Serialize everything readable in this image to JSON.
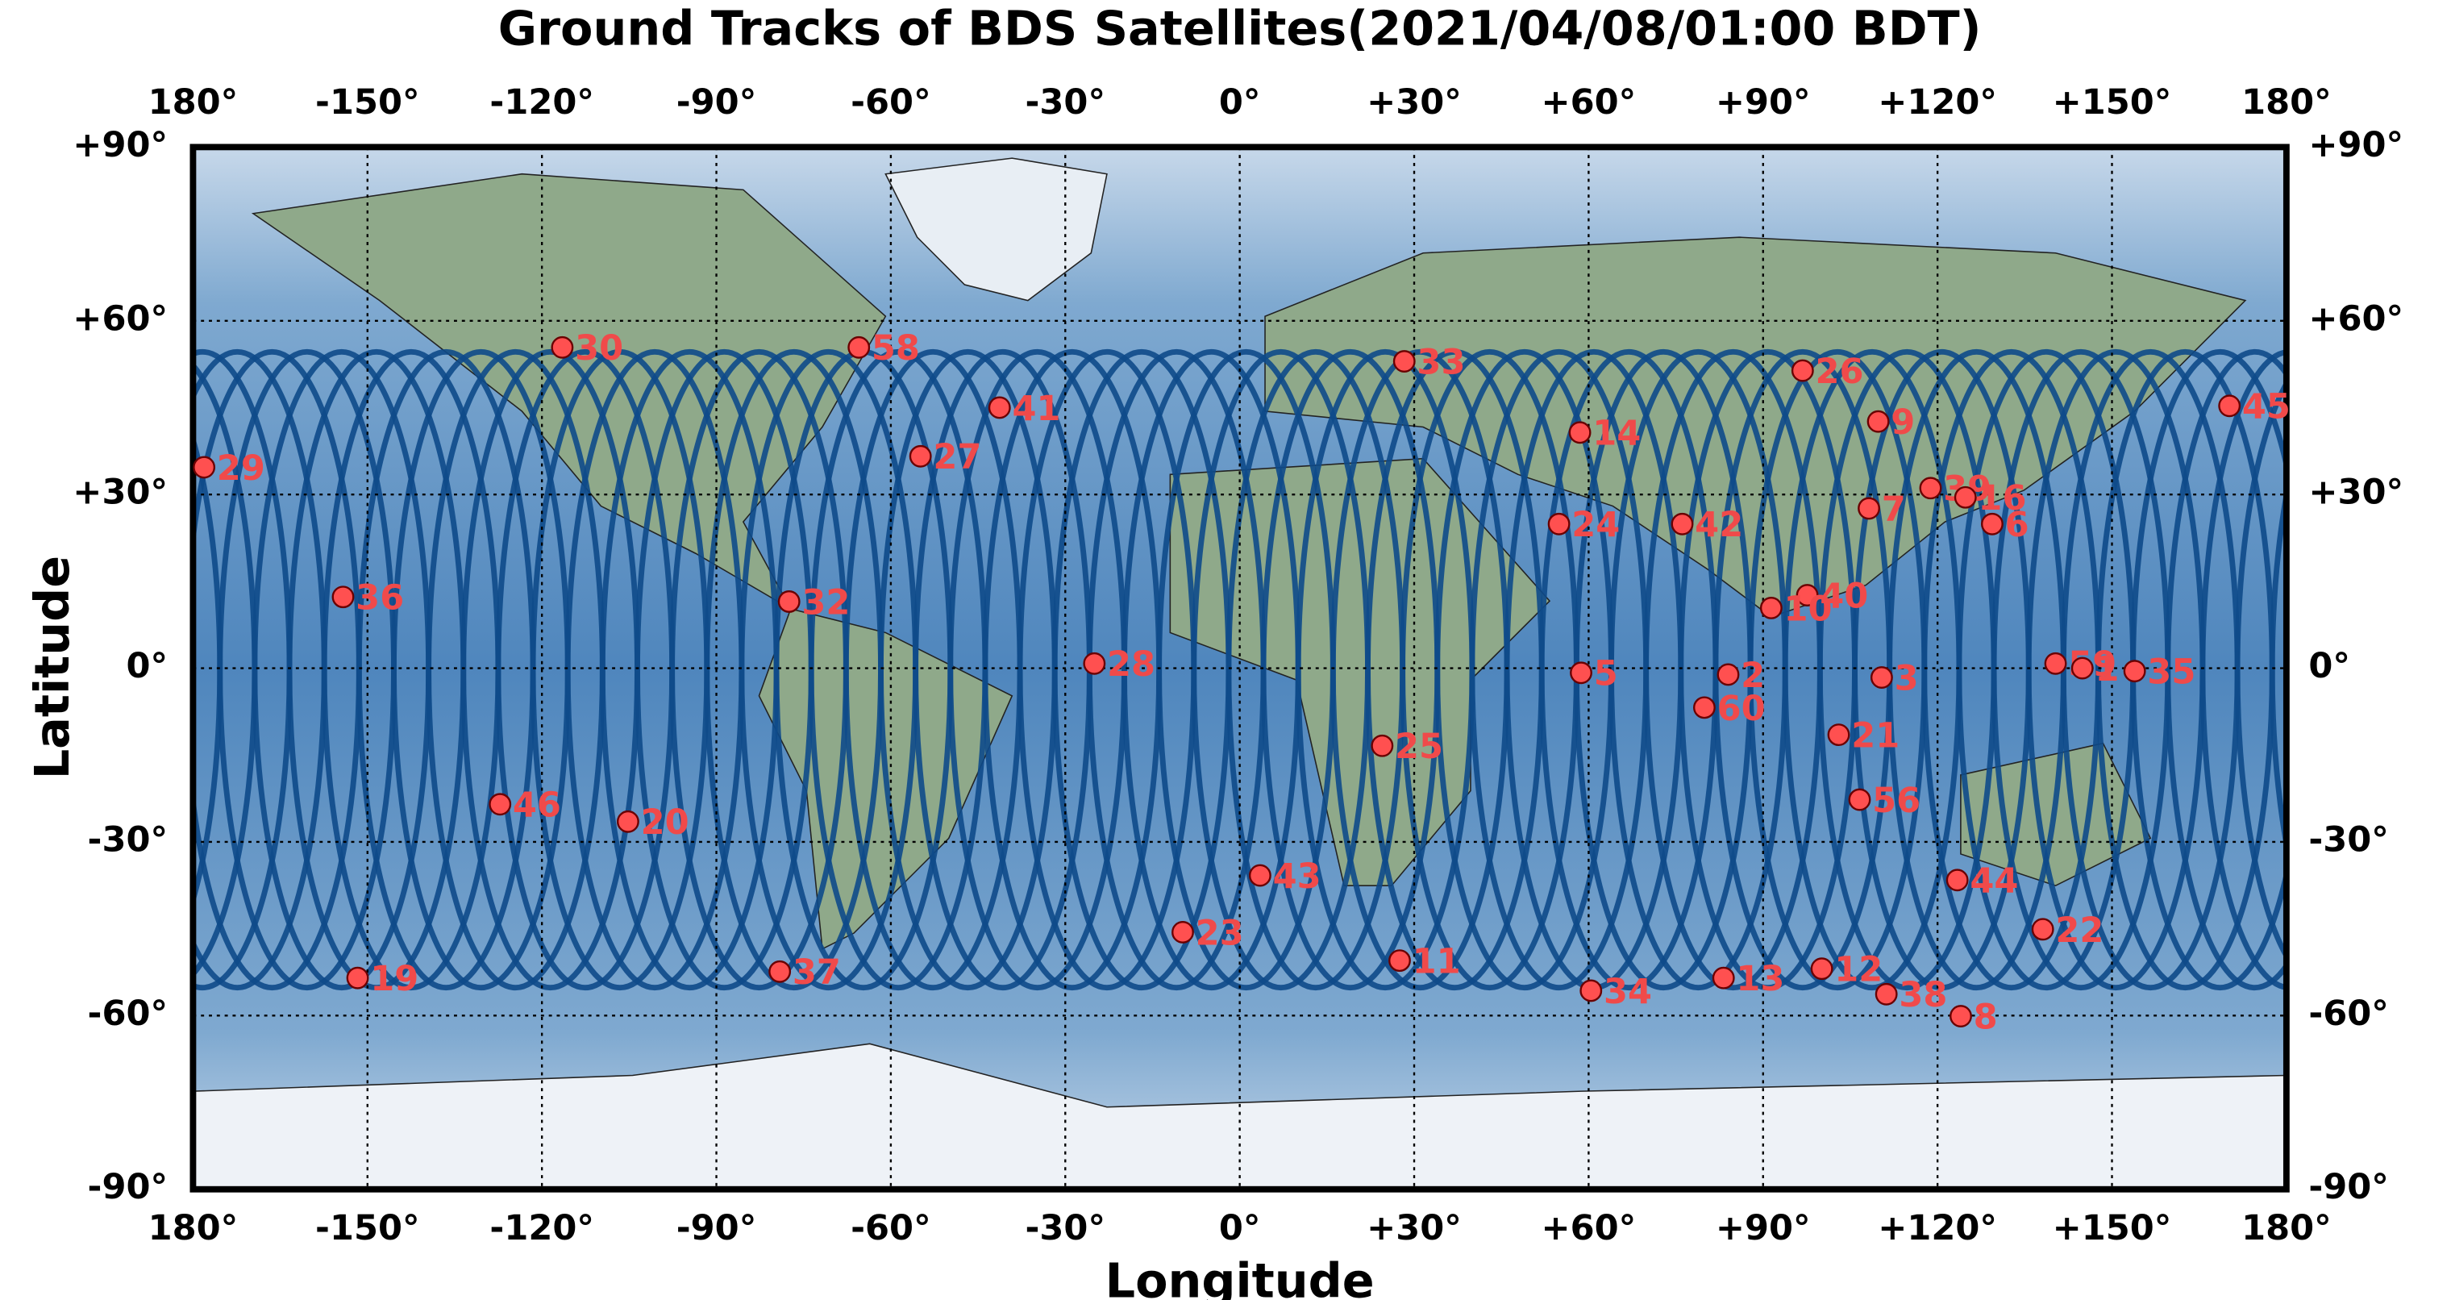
{
  "chart_data": {
    "type": "scatter",
    "title": "Ground Tracks of BDS Satellites(2021/04/08/01:00 BDT)",
    "xlabel": "Longitude",
    "ylabel": "Latitude",
    "labels": [
      "30",
      "58",
      "33",
      "41",
      "27",
      "29",
      "36",
      "32",
      "28",
      "46",
      "20",
      "19",
      "37",
      "23",
      "43",
      "25",
      "11",
      "34",
      "5",
      "14",
      "24",
      "42",
      "2",
      "60",
      "13",
      "26",
      "9",
      "7",
      "39",
      "16",
      "6",
      "40",
      "10",
      "3",
      "21",
      "56",
      "12",
      "38",
      "8",
      "44",
      "22",
      "59",
      "1",
      "35",
      "45"
    ],
    "x": [
      -116.5,
      -65.5,
      28.3,
      -41.3,
      -54.9,
      -178.1,
      -154.2,
      -77.5,
      -25,
      -127.2,
      -105.2,
      -151.7,
      -79.1,
      -9.8,
      3.5,
      24.5,
      27.5,
      60.4,
      58.7,
      58.5,
      54.9,
      76.1,
      84,
      79.9,
      83.2,
      96.8,
      109.8,
      108.2,
      118.8,
      124.8,
      129.4,
      97.6,
      91.4,
      110.4,
      103,
      106.6,
      100.1,
      111.2,
      124,
      123.4,
      138.1,
      140.3,
      144.9,
      153.9,
      170.2
    ],
    "values": [
      55.4,
      55.4,
      53,
      45,
      36.6,
      34.7,
      12.3,
      11.5,
      0.8,
      -23.5,
      -26.5,
      -53.5,
      -52.4,
      -45.6,
      -35.8,
      -13.4,
      -50.5,
      -55.7,
      -0.8,
      40.7,
      24.9,
      24.9,
      -1.1,
      -6.8,
      -53.5,
      51.4,
      42.6,
      27.6,
      31.1,
      29.5,
      24.9,
      12.6,
      10.4,
      -1.6,
      -11.5,
      -22.7,
      -51.9,
      -56.3,
      -60.1,
      -36.6,
      -45.1,
      0.8,
      0,
      -0.5,
      45.3
    ],
    "color": "#ff5050",
    "label_color": "#f04a4a",
    "track_color": "#0e4a8a",
    "xlim": [
      -180,
      180
    ],
    "ylim": [
      -90,
      90
    ],
    "xticks": [
      {
        "value": -180,
        "label": "180°"
      },
      {
        "value": -150,
        "label": "-150°"
      },
      {
        "value": -120,
        "label": "-120°"
      },
      {
        "value": -90,
        "label": "-90°"
      },
      {
        "value": -60,
        "label": "-60°"
      },
      {
        "value": -30,
        "label": "-30°"
      },
      {
        "value": 0,
        "label": "0°"
      },
      {
        "value": 30,
        "label": "+30°"
      },
      {
        "value": 60,
        "label": "+60°"
      },
      {
        "value": 90,
        "label": "+90°"
      },
      {
        "value": 120,
        "label": "+120°"
      },
      {
        "value": 150,
        "label": "+150°"
      },
      {
        "value": 180,
        "label": "180°"
      }
    ],
    "yticks": [
      {
        "value": 90,
        "label": "+90°"
      },
      {
        "value": 60,
        "label": "+60°"
      },
      {
        "value": 30,
        "label": "+30°"
      },
      {
        "value": 0,
        "label": "0°"
      },
      {
        "value": -30,
        "label": "-30°"
      },
      {
        "value": -60,
        "label": "-60°"
      },
      {
        "value": -90,
        "label": "-90°"
      }
    ],
    "grid": true
  }
}
